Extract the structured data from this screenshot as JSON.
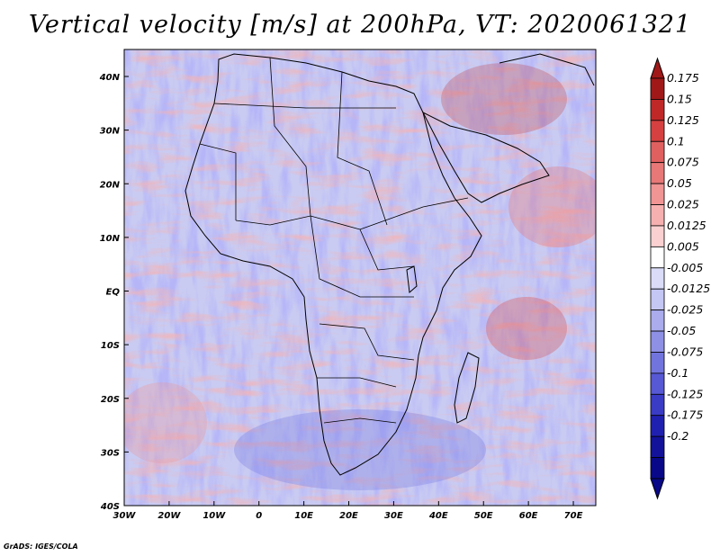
{
  "title": "Vertical velocity [m/s] at 200hPa, VT: 2020061321",
  "footer": "GrADS: IGES/COLA",
  "map": {
    "lon_range": [
      -30,
      75
    ],
    "lat_range": [
      -40,
      45
    ],
    "lon_ticks": [
      "30W",
      "20W",
      "10W",
      "0",
      "10E",
      "20E",
      "30E",
      "40E",
      "50E",
      "60E",
      "70E"
    ],
    "lat_ticks": [
      "40N",
      "30N",
      "20N",
      "10N",
      "EQ",
      "10S",
      "20S",
      "30S",
      "40S"
    ]
  },
  "colorbar": {
    "labels": [
      "0.175",
      "0.15",
      "0.125",
      "0.1",
      "0.075",
      "0.05",
      "0.025",
      "0.0125",
      "0.005",
      "-0.005",
      "-0.0125",
      "-0.025",
      "-0.05",
      "-0.075",
      "-0.1",
      "-0.125",
      "-0.175",
      "-0.2"
    ],
    "colors": [
      "#a01818",
      "#c02828",
      "#d64040",
      "#e06060",
      "#e87878",
      "#f09494",
      "#f6b0b0",
      "#fad0d0",
      "#ffffff",
      "#dadcf8",
      "#c4c6f4",
      "#aaacee",
      "#8e90e6",
      "#7274de",
      "#5658d4",
      "#3a3cc6",
      "#2020b0",
      "#12129a",
      "#080888"
    ]
  }
}
